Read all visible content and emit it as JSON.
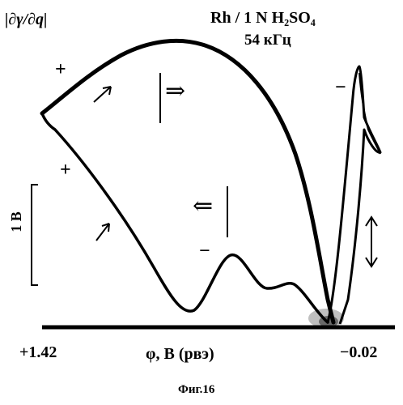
{
  "figure": {
    "ylabel": "|∂γ/∂q|",
    "title_line1": "Rh / 1 N H₂SO₄",
    "title_line2": "54 кГц",
    "xaxis": {
      "label": "φ, B (рвэ)",
      "min_label": "+1.42",
      "max_label": "−0.02"
    },
    "scale_bar_label": "1 B",
    "caption": "Фиг.16",
    "signs": {
      "plus_upper": "+",
      "plus_lower": "+",
      "minus_right": "−",
      "minus_middle": "−"
    },
    "arrows": {
      "forward": "⇒",
      "backward": "⇐"
    }
  }
}
